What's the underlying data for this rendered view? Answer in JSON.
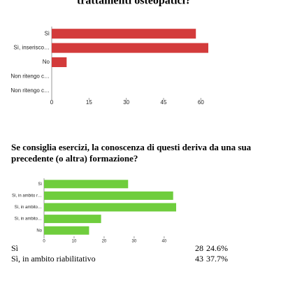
{
  "chart_data": [
    {
      "type": "bar",
      "orientation": "horizontal",
      "title": "trattamenti osteopatici?",
      "categories": [
        "Sì",
        "Sì, inserisco…",
        "No",
        "Non ritengo c…",
        "Non ritengo c…"
      ],
      "values": [
        58,
        63,
        6,
        0,
        0
      ],
      "color": "#d33b3b",
      "xlim": [
        0,
        63
      ],
      "xticks": [
        0,
        15,
        30,
        45,
        60
      ]
    },
    {
      "type": "bar",
      "orientation": "horizontal",
      "title": "Se consiglia esercizi, la conoscenza di questi deriva da una sua precedente (o altra) formazione?",
      "categories": [
        "Sì",
        "Sì, in ambito r…",
        "Sì, in ambito…",
        "Sì, in ambito…",
        "No"
      ],
      "values": [
        28,
        43,
        44,
        19,
        15
      ],
      "color": "#6fcd3d",
      "xlim": [
        0,
        44
      ],
      "xticks": [
        0,
        10,
        20,
        30,
        40
      ]
    }
  ],
  "table": {
    "rows": [
      [
        "Sì",
        28,
        "24.6%"
      ],
      [
        "Sì, in ambito riabilitativo",
        43,
        "37.7%"
      ]
    ]
  }
}
